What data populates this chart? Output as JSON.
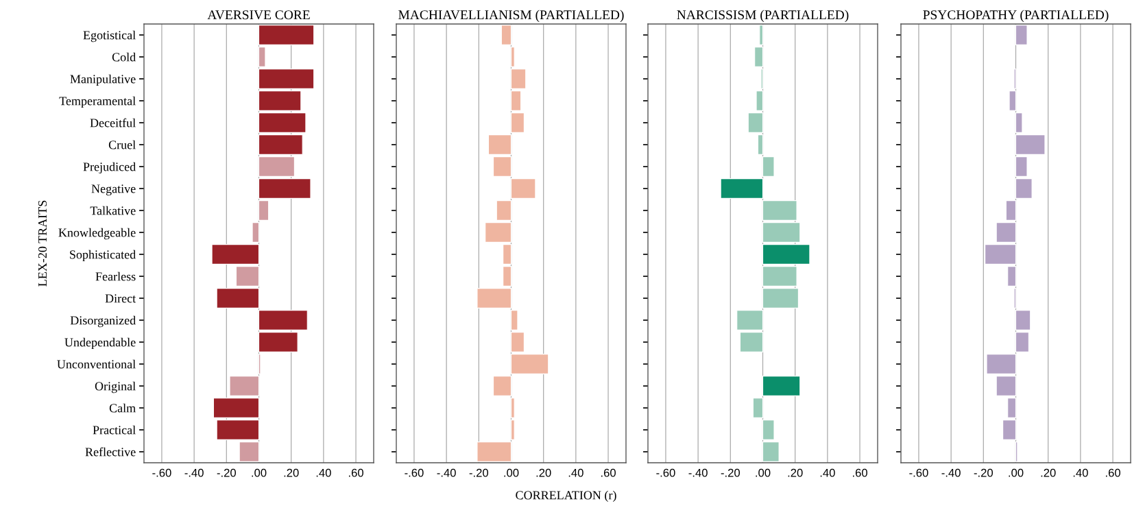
{
  "chart_data": [
    {
      "type": "bar",
      "orientation": "horizontal",
      "title": "AVERSIVE CORE",
      "ylabel": "LEX-20 TRAITS",
      "categories": [
        "Egotistical",
        "Cold",
        "Manipulative",
        "Temperamental",
        "Deceitful",
        "Cruel",
        "Prejudiced",
        "Negative",
        "Talkative",
        "Knowledgeable",
        "Sophisticated",
        "Fearless",
        "Direct",
        "Disorganized",
        "Undependable",
        "Unconventional",
        "Original",
        "Calm",
        "Practical",
        "Reflective"
      ],
      "values": [
        0.34,
        0.04,
        0.34,
        0.26,
        0.29,
        0.27,
        0.22,
        0.32,
        0.06,
        -0.04,
        -0.29,
        -0.14,
        -0.26,
        0.3,
        0.24,
        0.01,
        -0.18,
        -0.28,
        -0.26,
        -0.12
      ],
      "colors": [
        "#9a2128",
        "#d09ba0",
        "#9a2128",
        "#9a2128",
        "#9a2128",
        "#9a2128",
        "#d09ba0",
        "#9a2128",
        "#d09ba0",
        "#d09ba0",
        "#9a2128",
        "#d09ba0",
        "#9a2128",
        "#9a2128",
        "#9a2128",
        "#d09ba0",
        "#d09ba0",
        "#9a2128",
        "#9a2128",
        "#d09ba0"
      ],
      "xlim": [
        -0.71,
        0.71
      ],
      "xticks": [
        {
          "value": -0.6,
          "label": "-.60"
        },
        {
          "value": -0.4,
          "label": "-.40"
        },
        {
          "value": -0.2,
          "label": "-.20"
        },
        {
          "value": 0,
          "label": ".00"
        },
        {
          "value": 0.2,
          "label": ".20"
        },
        {
          "value": 0.4,
          "label": ".40"
        },
        {
          "value": 0.6,
          "label": ".60"
        }
      ],
      "grid": "x"
    },
    {
      "type": "bar",
      "orientation": "horizontal",
      "title": "MACHIAVELLIANISM (PARTIALLED)",
      "xlabel": "CORRELATION (r)",
      "tick_labels": "x",
      "categories": [
        null,
        null,
        null,
        null,
        null,
        null,
        null,
        null,
        null,
        null,
        null,
        null,
        null,
        null,
        null,
        null,
        null,
        null,
        null,
        null
      ],
      "values": [
        -0.06,
        0.02,
        0.09,
        0.06,
        0.08,
        -0.14,
        -0.11,
        0.15,
        -0.09,
        -0.16,
        -0.05,
        -0.05,
        -0.21,
        0.04,
        0.08,
        0.23,
        -0.11,
        0.02,
        0.02,
        -0.21
      ],
      "colors": [
        "#efb5a0",
        "#efb5a0",
        "#efb5a0",
        "#efb5a0",
        "#efb5a0",
        "#efb5a0",
        "#efb5a0",
        "#efb5a0",
        "#efb5a0",
        "#efb5a0",
        "#efb5a0",
        "#efb5a0",
        "#efb5a0",
        "#efb5a0",
        "#efb5a0",
        "#efb5a0",
        "#efb5a0",
        "#efb5a0",
        "#efb5a0",
        "#efb5a0"
      ],
      "xlim": [
        -0.71,
        0.71
      ],
      "xticks": [
        {
          "value": -0.6,
          "label": "-.60"
        },
        {
          "value": -0.4,
          "label": "-.40"
        },
        {
          "value": -0.2,
          "label": "-.20"
        },
        {
          "value": 0,
          "label": ".00"
        },
        {
          "value": 0.2,
          "label": ".20"
        },
        {
          "value": 0.4,
          "label": ".40"
        },
        {
          "value": 0.6,
          "label": ".60"
        }
      ],
      "grid": "x"
    },
    {
      "type": "bar",
      "orientation": "horizontal",
      "title": "NARCISSISM (PARTIALLED)",
      "tick_labels": "x",
      "categories": [
        null,
        null,
        null,
        null,
        null,
        null,
        null,
        null,
        null,
        null,
        null,
        null,
        null,
        null,
        null,
        null,
        null,
        null,
        null,
        null
      ],
      "values": [
        -0.02,
        -0.05,
        -0.01,
        -0.04,
        -0.09,
        -0.03,
        0.07,
        -0.26,
        0.21,
        0.23,
        0.29,
        0.21,
        0.22,
        -0.16,
        -0.14,
        null,
        0.23,
        -0.06,
        0.07,
        0.1
      ],
      "colors": [
        "#99cbb8",
        "#99cbb8",
        "#99cbb8",
        "#99cbb8",
        "#99cbb8",
        "#99cbb8",
        "#99cbb8",
        "#0b8f6b",
        "#99cbb8",
        "#99cbb8",
        "#0b8f6b",
        "#99cbb8",
        "#99cbb8",
        "#99cbb8",
        "#99cbb8",
        "#99cbb8",
        "#0b8f6b",
        "#99cbb8",
        "#99cbb8",
        "#99cbb8"
      ],
      "xlim": [
        -0.71,
        0.71
      ],
      "xticks": [
        {
          "value": -0.6,
          "label": "-.60"
        },
        {
          "value": -0.4,
          "label": "-.40"
        },
        {
          "value": -0.2,
          "label": "-.20"
        },
        {
          "value": 0,
          "label": ".00"
        },
        {
          "value": 0.2,
          "label": ".20"
        },
        {
          "value": 0.4,
          "label": ".40"
        },
        {
          "value": 0.6,
          "label": ".60"
        }
      ],
      "grid": "x"
    },
    {
      "type": "bar",
      "orientation": "horizontal",
      "title": "PSYCHOPATHY (PARTIALLED)",
      "tick_labels": "x",
      "categories": [
        null,
        null,
        null,
        null,
        null,
        null,
        null,
        null,
        null,
        null,
        null,
        null,
        null,
        null,
        null,
        null,
        null,
        null,
        null,
        null
      ],
      "values": [
        0.07,
        null,
        -0.01,
        -0.04,
        0.04,
        0.18,
        0.07,
        0.1,
        -0.06,
        -0.12,
        -0.19,
        -0.05,
        -0.01,
        0.09,
        0.08,
        -0.18,
        -0.12,
        -0.05,
        -0.08,
        0.01
      ],
      "colors": [
        "#b3a2c4",
        "#b3a2c4",
        "#b3a2c4",
        "#b3a2c4",
        "#b3a2c4",
        "#b3a2c4",
        "#b3a2c4",
        "#b3a2c4",
        "#b3a2c4",
        "#b3a2c4",
        "#b3a2c4",
        "#b3a2c4",
        "#b3a2c4",
        "#b3a2c4",
        "#b3a2c4",
        "#b3a2c4",
        "#b3a2c4",
        "#b3a2c4",
        "#b3a2c4",
        "#b3a2c4"
      ],
      "xlim": [
        -0.71,
        0.71
      ],
      "xticks": [
        {
          "value": -0.6,
          "label": "-.60"
        },
        {
          "value": -0.4,
          "label": "-.40"
        },
        {
          "value": -0.2,
          "label": "-.20"
        },
        {
          "value": 0,
          "label": ".00"
        },
        {
          "value": 0.2,
          "label": ".20"
        },
        {
          "value": 0.4,
          "label": ".40"
        },
        {
          "value": 0.6,
          "label": ".60"
        }
      ],
      "grid": "x"
    }
  ]
}
